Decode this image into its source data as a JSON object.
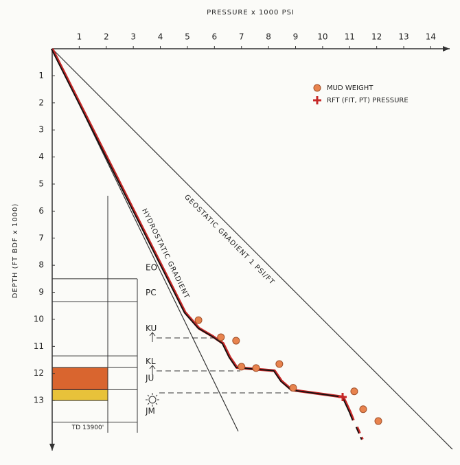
{
  "chart_data": {
    "type": "scatter",
    "x_label": "PRESSURE x 1000 PSI",
    "y_label": "DEPTH (FT BDF x 1000)",
    "xlim": [
      0,
      14.7
    ],
    "ylim": [
      0,
      14.85
    ],
    "xticks": [
      1,
      2,
      3,
      4,
      5,
      6,
      7,
      8,
      9,
      10,
      11,
      12,
      13,
      14
    ],
    "yticks": [
      1,
      2,
      3,
      4,
      5,
      6,
      7,
      8,
      9,
      10,
      11,
      12,
      13
    ],
    "y_inverted": true,
    "legend": "upper right",
    "series": [
      {
        "name": "MUD WEIGHT",
        "marker": "circle",
        "color": "#e8834e",
        "x": [
          5.41,
          6.24,
          6.8,
          7.0,
          7.54,
          8.4,
          8.91,
          11.17,
          11.5,
          12.06
        ],
        "values": [
          10.03,
          10.66,
          10.79,
          11.75,
          11.8,
          11.65,
          12.53,
          12.66,
          13.32,
          13.76
        ]
      },
      {
        "name": "RFT (FIT, PT) PRESSURE",
        "marker": "plus",
        "color": "#c62828",
        "x": [
          10.74
        ],
        "values": [
          12.87
        ]
      }
    ],
    "gradients": [
      {
        "label": "HYDROSTATIC GRADIENT",
        "x": [
          0,
          6.88
        ],
        "values": [
          0,
          14.14
        ],
        "color": "#333333"
      },
      {
        "label": "GEOSTATIC GRADIENT 1 PSI/FT",
        "x": [
          0,
          14.8
        ],
        "values": [
          0,
          14.8
        ],
        "color": "#333333"
      }
    ],
    "pressure_profile": [
      {
        "style": "solid",
        "color": "#c62828",
        "x": [
          0,
          4.92,
          5.43,
          5.94,
          6.32,
          6.57,
          6.83,
          8.22,
          8.48,
          8.86,
          10.76,
          11.02,
          11.14
        ],
        "values": [
          0,
          9.75,
          10.33,
          10.63,
          10.89,
          11.4,
          11.78,
          11.9,
          12.28,
          12.61,
          12.87,
          13.43,
          13.73
        ]
      },
      {
        "style": "dashed",
        "color": "#c62828",
        "x": [
          11.27,
          11.47
        ],
        "values": [
          13.98,
          14.44
        ]
      }
    ],
    "column": {
      "units": [
        {
          "label": "EO",
          "top": 7.7,
          "bottom": 8.5
        },
        {
          "label": "PC",
          "top": 8.7,
          "bottom": 9.35
        },
        {
          "label": "KU",
          "top": 9.35,
          "bottom": 11.35
        },
        {
          "label": "KL",
          "top": 11.35,
          "bottom": 11.78
        },
        {
          "label": "JU",
          "top": 11.78,
          "bottom": 12.6,
          "fill": "#d9652f"
        },
        {
          "label": "JM",
          "top": 13.0,
          "bottom": 13.8
        }
      ],
      "bands": [
        {
          "top": 12.6,
          "bottom": 13.0,
          "fill": "#e8c23a"
        }
      ],
      "total_depth_label": "TD 13900'"
    }
  }
}
